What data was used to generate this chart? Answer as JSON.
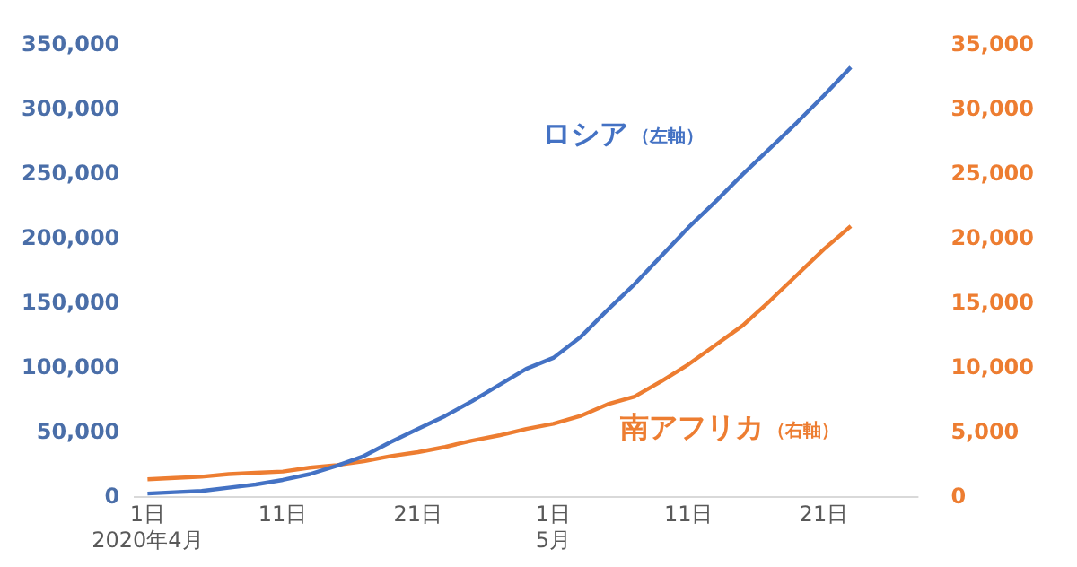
{
  "chart_data": {
    "type": "line",
    "x": [
      "2020-04-01",
      "2020-04-03",
      "2020-04-05",
      "2020-04-07",
      "2020-04-09",
      "2020-04-11",
      "2020-04-13",
      "2020-04-15",
      "2020-04-17",
      "2020-04-19",
      "2020-04-21",
      "2020-04-23",
      "2020-04-25",
      "2020-04-27",
      "2020-04-29",
      "2020-05-01",
      "2020-05-03",
      "2020-05-05",
      "2020-05-07",
      "2020-05-09",
      "2020-05-11",
      "2020-05-13",
      "2020-05-15",
      "2020-05-17",
      "2020-05-19",
      "2020-05-21",
      "2020-05-23"
    ],
    "series": [
      {
        "name": "ロシア（左軸）",
        "color": "#4472c4",
        "axis": "y",
        "values": [
          3000,
          4000,
          5000,
          7500,
          10000,
          13500,
          18000,
          24500,
          32000,
          43000,
          53000,
          63000,
          74500,
          87000,
          99500,
          108000,
          124000,
          145000,
          165000,
          187000,
          209000,
          229000,
          250000,
          270000,
          290000,
          311000,
          333000
        ]
      },
      {
        "name": "南アフリカ（右軸）",
        "color": "#ed7d31",
        "axis": "y2",
        "values": [
          1400,
          1500,
          1600,
          1800,
          1900,
          2000,
          2300,
          2500,
          2800,
          3200,
          3500,
          3900,
          4400,
          4800,
          5300,
          5700,
          6300,
          7200,
          7800,
          9000,
          10300,
          11800,
          13300,
          15200,
          17200,
          19200,
          21000
        ]
      }
    ],
    "xlim": [
      "2020-03-31",
      "2020-05-28"
    ],
    "xticks": [
      {
        "value": "2020-04-01",
        "label": "1日\n2020年4月"
      },
      {
        "value": "2020-04-11",
        "label": "11日"
      },
      {
        "value": "2020-04-21",
        "label": "21日"
      },
      {
        "value": "2020-05-01",
        "label": "1日\n5月"
      },
      {
        "value": "2020-05-11",
        "label": "11日"
      },
      {
        "value": "2020-05-21",
        "label": "21日"
      }
    ],
    "ylim": [
      0,
      350000
    ],
    "yticks": [
      0,
      {
        "value": 50000,
        "label": "50,000"
      },
      {
        "value": 100000,
        "label": "100,000"
      },
      {
        "value": 150000,
        "label": "150,000"
      },
      {
        "value": 200000,
        "label": "200,000"
      },
      {
        "value": 250000,
        "label": "250,000"
      },
      {
        "value": 300000,
        "label": "300,000"
      },
      {
        "value": 350000,
        "label": "350,000"
      }
    ],
    "y2lim": [
      0,
      35000
    ],
    "y2ticks": [
      0,
      {
        "value": 5000,
        "label": "5,000"
      },
      {
        "value": 10000,
        "label": "10,000"
      },
      {
        "value": 15000,
        "label": "15,000"
      },
      {
        "value": 20000,
        "label": "20,000"
      },
      {
        "value": 25000,
        "label": "25,000"
      },
      {
        "value": 30000,
        "label": "30,000"
      },
      {
        "value": 35000,
        "label": "35,000"
      }
    ],
    "grid": false,
    "legend": false,
    "marker": "none",
    "line_style": "solid"
  }
}
